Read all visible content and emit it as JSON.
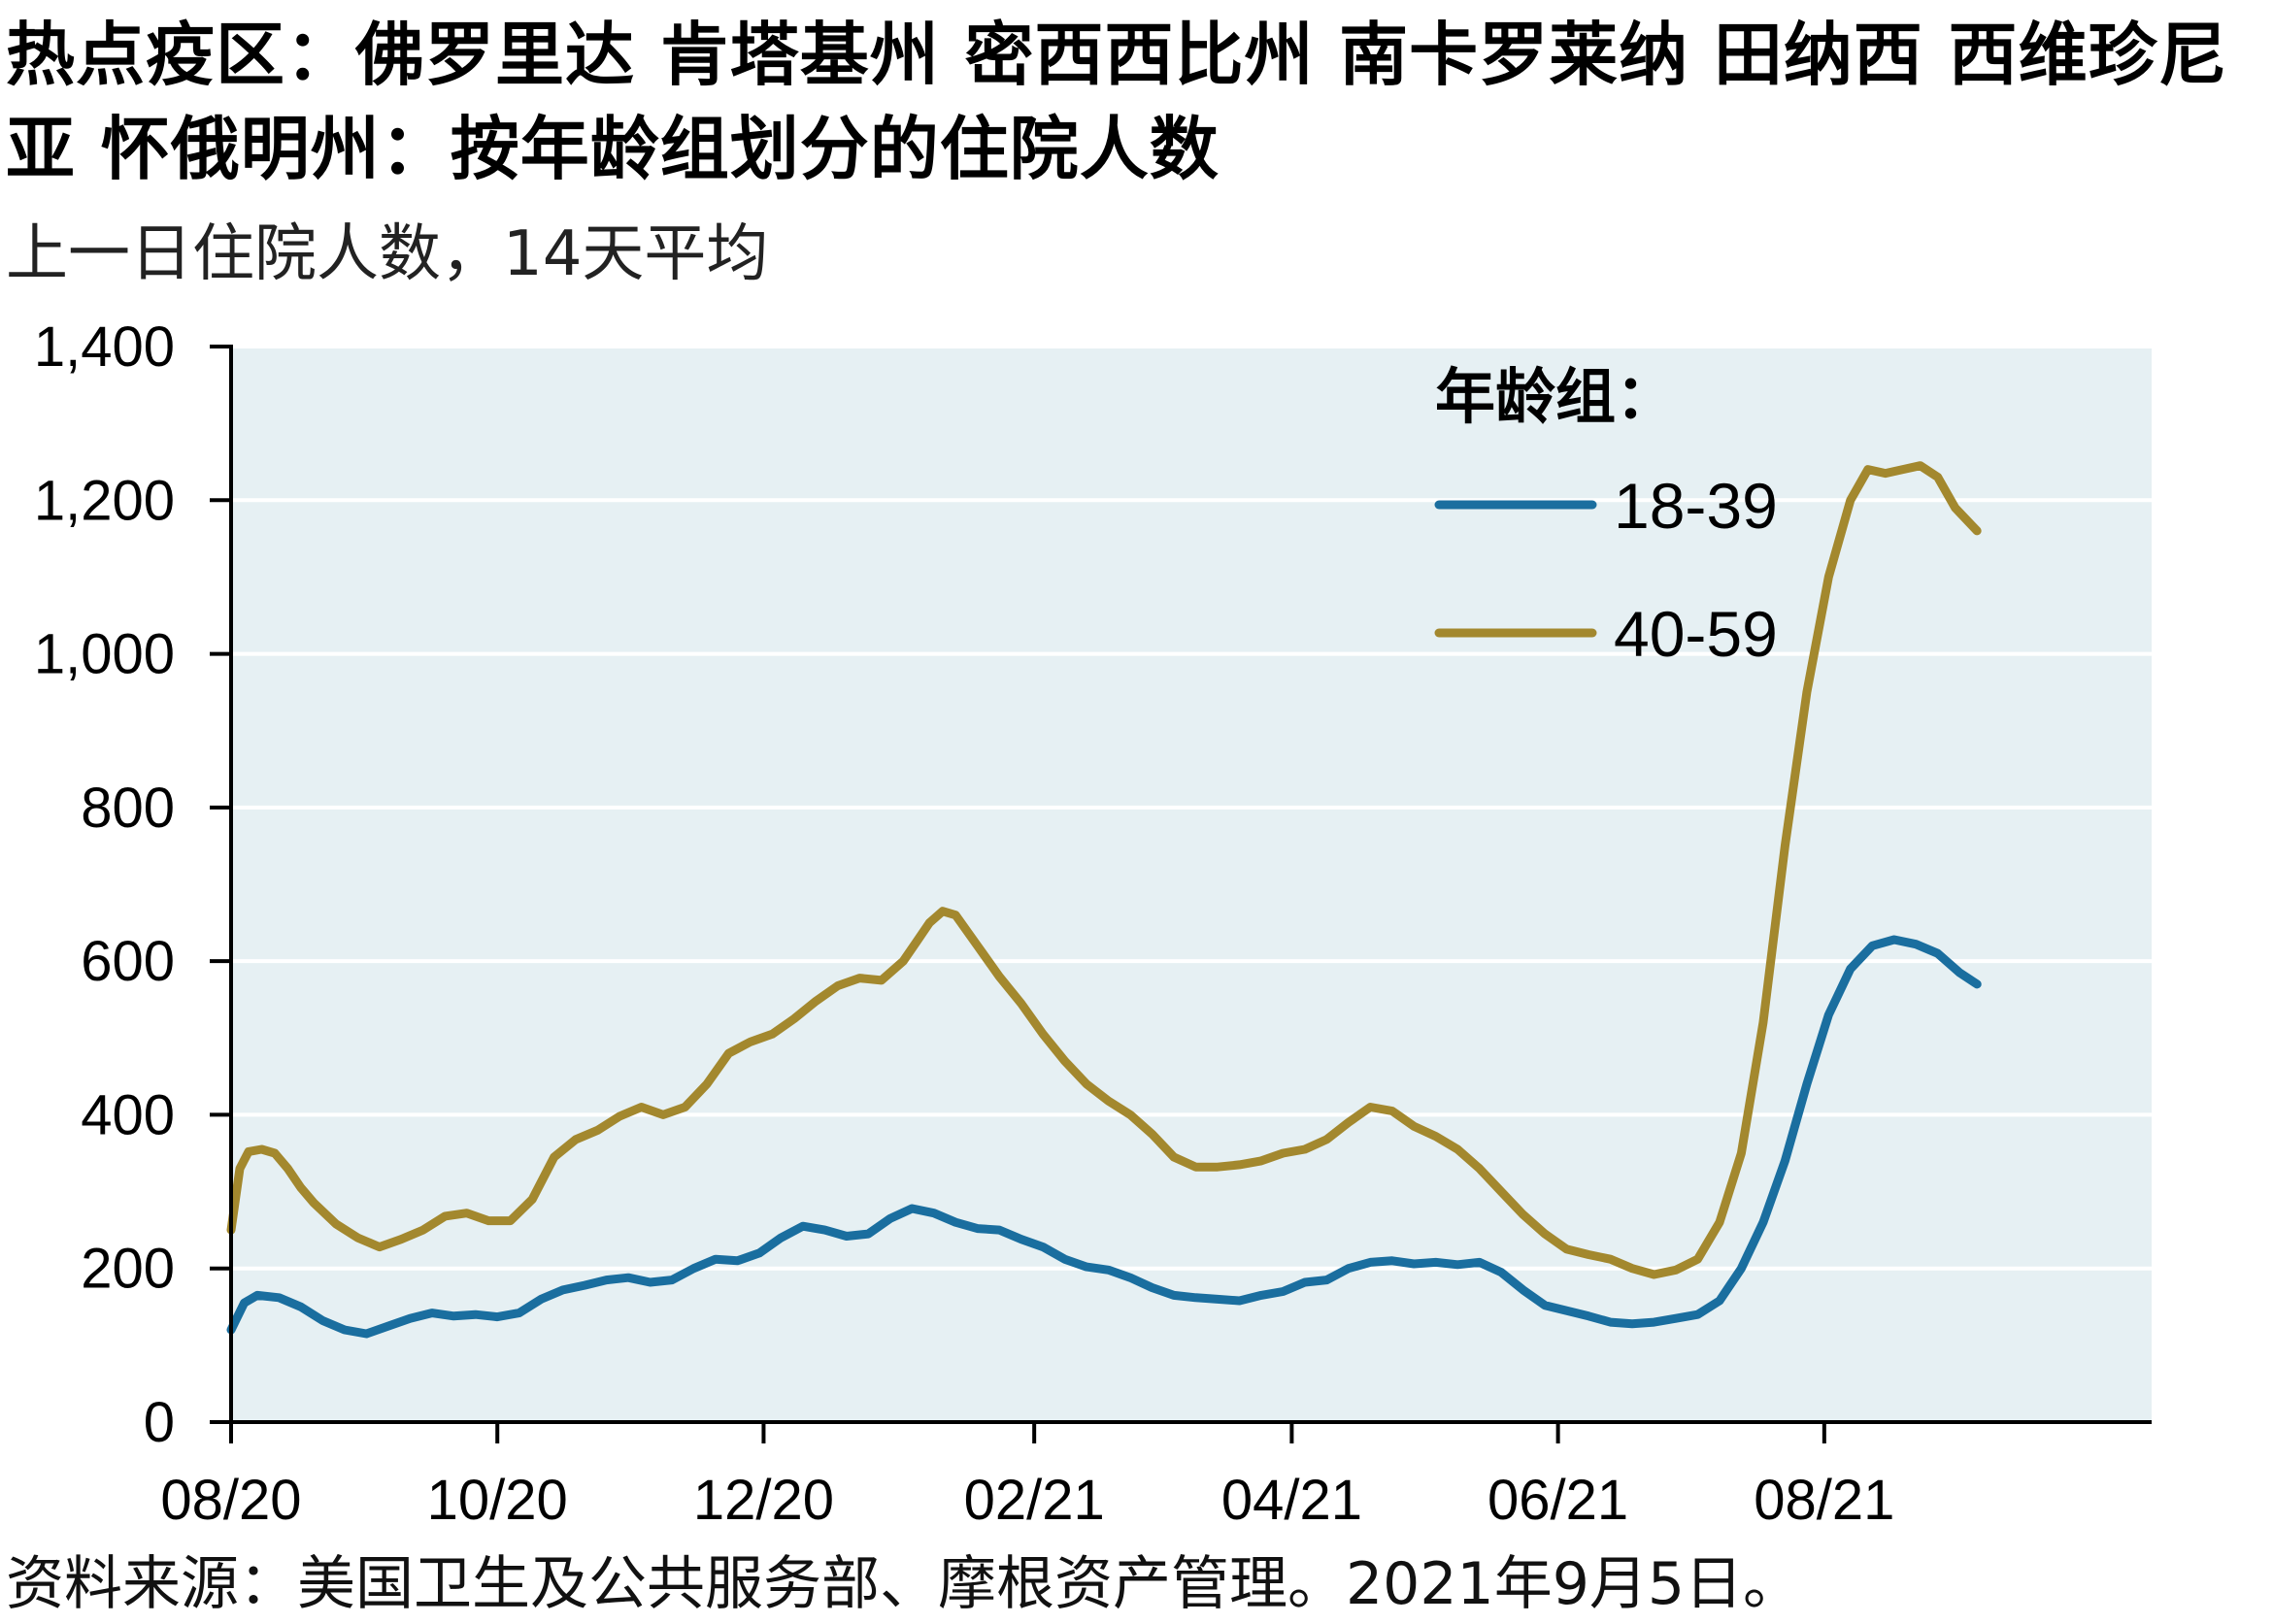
{
  "title": "热点疫区：佛罗里达  肯塔基州   密西西比州  南卡罗莱纳 田纳西  西维珍尼亚  怀俄明州：按年龄组划分的住院人数",
  "subtitle": "上一日住院人数，14天平均",
  "source": "资料来源：美国卫生及公共服务部、摩根资产管理。2021年9月5日。",
  "colors": {
    "plot_bg": "#e6f0f3",
    "gridline": "#ffffff",
    "axis": "#000000"
  },
  "chart_data": {
    "type": "line",
    "title": "热点疫区：佛罗里达  肯塔基州   密西西比州  南卡罗莱纳 田纳西  西维珍尼亚  怀俄明州：按年龄组划分的住院人数",
    "subtitle": "上一日住院人数，14天平均",
    "xlabel": "",
    "ylabel": "",
    "ylim": [
      0,
      1400
    ],
    "yticks": [
      0,
      200,
      400,
      600,
      800,
      1000,
      1200,
      1400
    ],
    "ytick_labels": [
      "0",
      "200",
      "400",
      "600",
      "800",
      "1,000",
      "1,200",
      "1,400"
    ],
    "xlim": [
      "2020-08-01",
      "2021-10-15"
    ],
    "xticks": [
      "2020-08-01",
      "2020-10-01",
      "2020-12-01",
      "2021-02-01",
      "2021-04-01",
      "2021-06-01",
      "2021-08-01"
    ],
    "xtick_labels": [
      "08/20",
      "10/20",
      "12/20",
      "02/21",
      "04/21",
      "06/21",
      "08/21"
    ],
    "grid": true,
    "legend_title": "年龄组：",
    "legend_position": "top-right",
    "series": [
      {
        "name": "18-39",
        "color": "#1a6e9f",
        "x": [
          "2020-08-01",
          "2020-08-04",
          "2020-08-07",
          "2020-08-12",
          "2020-08-17",
          "2020-08-22",
          "2020-08-27",
          "2020-09-01",
          "2020-09-06",
          "2020-09-11",
          "2020-09-16",
          "2020-09-21",
          "2020-09-26",
          "2020-10-01",
          "2020-10-06",
          "2020-10-11",
          "2020-10-16",
          "2020-10-21",
          "2020-10-26",
          "2020-10-31",
          "2020-11-05",
          "2020-11-10",
          "2020-11-15",
          "2020-11-20",
          "2020-11-25",
          "2020-11-30",
          "2020-12-05",
          "2020-12-10",
          "2020-12-15",
          "2020-12-20",
          "2020-12-25",
          "2020-12-30",
          "2021-01-04",
          "2021-01-09",
          "2021-01-14",
          "2021-01-19",
          "2021-01-24",
          "2021-01-29",
          "2021-02-03",
          "2021-02-08",
          "2021-02-13",
          "2021-02-18",
          "2021-02-23",
          "2021-02-28",
          "2021-03-05",
          "2021-03-10",
          "2021-03-15",
          "2021-03-20",
          "2021-03-25",
          "2021-03-30",
          "2021-04-04",
          "2021-04-09",
          "2021-04-14",
          "2021-04-19",
          "2021-04-24",
          "2021-04-29",
          "2021-05-04",
          "2021-05-09",
          "2021-05-14",
          "2021-05-19",
          "2021-05-24",
          "2021-05-29",
          "2021-06-03",
          "2021-06-08",
          "2021-06-13",
          "2021-06-18",
          "2021-06-23",
          "2021-06-28",
          "2021-07-03",
          "2021-07-08",
          "2021-07-13",
          "2021-07-18",
          "2021-07-23",
          "2021-07-28",
          "2021-08-02",
          "2021-08-07",
          "2021-08-12",
          "2021-08-17",
          "2021-08-22",
          "2021-08-27",
          "2021-09-01",
          "2021-09-05"
        ],
        "values": [
          120,
          155,
          165,
          162,
          150,
          132,
          120,
          115,
          125,
          135,
          142,
          138,
          140,
          137,
          142,
          160,
          172,
          178,
          185,
          188,
          182,
          185,
          200,
          212,
          210,
          220,
          240,
          255,
          250,
          242,
          245,
          265,
          278,
          272,
          260,
          252,
          250,
          238,
          228,
          212,
          202,
          198,
          188,
          175,
          165,
          162,
          160,
          158,
          165,
          170,
          182,
          185,
          200,
          208,
          210,
          206,
          208,
          205,
          208,
          195,
          172,
          152,
          145,
          138,
          130,
          128,
          130,
          135,
          140,
          158,
          200,
          260,
          340,
          440,
          530,
          590,
          620,
          628,
          622,
          610,
          585,
          570
        ]
      },
      {
        "name": "40-59",
        "color": "#a3882e",
        "x": [
          "2020-08-01",
          "2020-08-03",
          "2020-08-05",
          "2020-08-08",
          "2020-08-11",
          "2020-08-14",
          "2020-08-17",
          "2020-08-20",
          "2020-08-25",
          "2020-08-30",
          "2020-09-04",
          "2020-09-09",
          "2020-09-14",
          "2020-09-19",
          "2020-09-24",
          "2020-09-29",
          "2020-10-04",
          "2020-10-09",
          "2020-10-14",
          "2020-10-19",
          "2020-10-24",
          "2020-10-29",
          "2020-11-03",
          "2020-11-08",
          "2020-11-13",
          "2020-11-18",
          "2020-11-23",
          "2020-11-28",
          "2020-12-03",
          "2020-12-08",
          "2020-12-13",
          "2020-12-18",
          "2020-12-23",
          "2020-12-28",
          "2021-01-02",
          "2021-01-05",
          "2021-01-08",
          "2021-01-11",
          "2021-01-14",
          "2021-01-19",
          "2021-01-24",
          "2021-01-29",
          "2021-02-03",
          "2021-02-08",
          "2021-02-13",
          "2021-02-18",
          "2021-02-23",
          "2021-02-28",
          "2021-03-05",
          "2021-03-10",
          "2021-03-15",
          "2021-03-20",
          "2021-03-25",
          "2021-03-30",
          "2021-04-04",
          "2021-04-09",
          "2021-04-14",
          "2021-04-19",
          "2021-04-24",
          "2021-04-29",
          "2021-05-04",
          "2021-05-09",
          "2021-05-14",
          "2021-05-19",
          "2021-05-24",
          "2021-05-29",
          "2021-06-03",
          "2021-06-08",
          "2021-06-13",
          "2021-06-18",
          "2021-06-23",
          "2021-06-28",
          "2021-07-03",
          "2021-07-08",
          "2021-07-13",
          "2021-07-18",
          "2021-07-23",
          "2021-07-28",
          "2021-08-02",
          "2021-08-07",
          "2021-08-11",
          "2021-08-15",
          "2021-08-19",
          "2021-08-23",
          "2021-08-27",
          "2021-08-31",
          "2021-09-05"
        ],
        "values": [
          250,
          330,
          352,
          355,
          350,
          330,
          305,
          285,
          258,
          240,
          228,
          238,
          250,
          268,
          272,
          262,
          262,
          290,
          345,
          368,
          380,
          398,
          410,
          400,
          410,
          440,
          480,
          495,
          505,
          525,
          548,
          568,
          578,
          575,
          600,
          625,
          650,
          665,
          660,
          620,
          580,
          545,
          505,
          470,
          440,
          418,
          400,
          375,
          345,
          332,
          332,
          335,
          340,
          350,
          355,
          368,
          390,
          410,
          405,
          385,
          372,
          355,
          330,
          300,
          270,
          245,
          225,
          218,
          212,
          200,
          192,
          198,
          212,
          260,
          350,
          520,
          750,
          950,
          1100,
          1200,
          1240,
          1235,
          1240,
          1245,
          1230,
          1190,
          1160
        ]
      }
    ]
  }
}
